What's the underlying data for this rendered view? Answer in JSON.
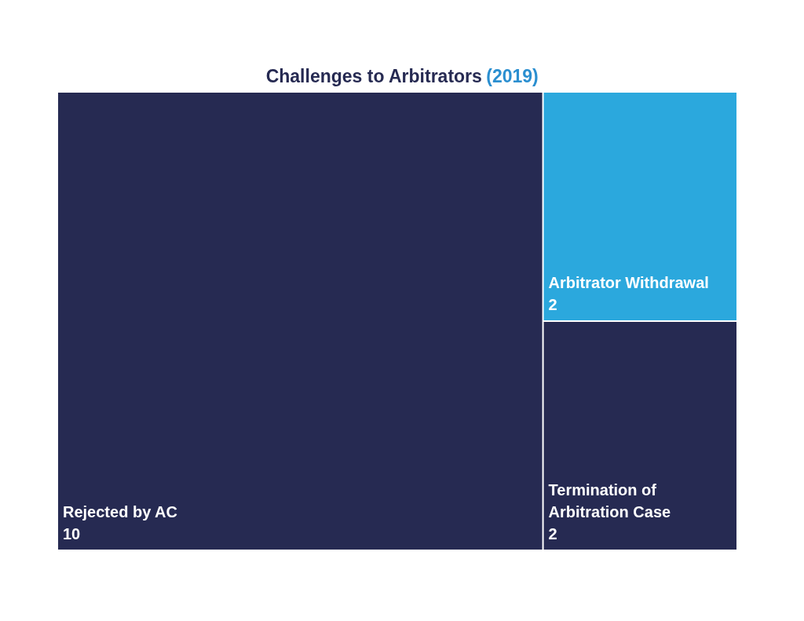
{
  "chart_data": {
    "type": "other",
    "title": "Challenges to Arbitrators (2019)",
    "categories": [
      "Rejected by AC",
      "Arbitrator Withdrawal",
      "Termination of Arbitration Case"
    ],
    "values": [
      10,
      2,
      2
    ],
    "colors": [
      "#262a52",
      "#2ba8dd",
      "#262a52"
    ],
    "data_labels": true
  }
}
